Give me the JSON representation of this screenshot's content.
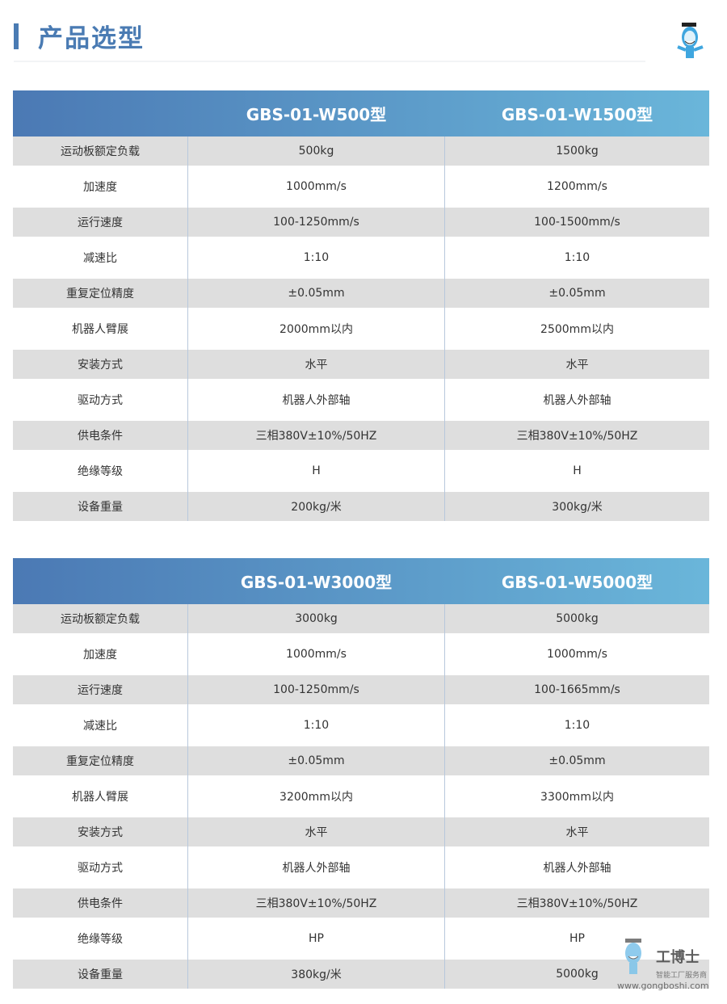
{
  "page_title": "产品选型",
  "row_labels": [
    "运动板额定负载",
    "加速度",
    "运行速度",
    "减速比",
    "重复定位精度",
    "机器人臂展",
    "安装方式",
    "驱动方式",
    "供电条件",
    "绝缘等级",
    "设备重量"
  ],
  "tables": [
    {
      "models": [
        "GBS-01-W500型",
        "GBS-01-W1500型"
      ],
      "values": [
        [
          "500kg",
          "1500kg"
        ],
        [
          "1000mm/s",
          "1200mm/s"
        ],
        [
          "100-1250mm/s",
          "100-1500mm/s"
        ],
        [
          "1:10",
          "1:10"
        ],
        [
          "±0.05mm",
          "±0.05mm"
        ],
        [
          "2000mm以内",
          "2500mm以内"
        ],
        [
          "水平",
          "水平"
        ],
        [
          "机器人外部轴",
          "机器人外部轴"
        ],
        [
          "三相380V±10%/50HZ",
          "三相380V±10%/50HZ"
        ],
        [
          "H",
          "H"
        ],
        [
          "200kg/米",
          "300kg/米"
        ]
      ]
    },
    {
      "models": [
        "GBS-01-W3000型",
        "GBS-01-W5000型"
      ],
      "values": [
        [
          "3000kg",
          "5000kg"
        ],
        [
          "1000mm/s",
          "1000mm/s"
        ],
        [
          "100-1250mm/s",
          "100-1665mm/s"
        ],
        [
          "1:10",
          "1:10"
        ],
        [
          "±0.05mm",
          "±0.05mm"
        ],
        [
          "3200mm以内",
          "3300mm以内"
        ],
        [
          "水平",
          "水平"
        ],
        [
          "机器人外部轴",
          "机器人外部轴"
        ],
        [
          "三相380V±10%/50HZ",
          "三相380V±10%/50HZ"
        ],
        [
          "HP",
          "HP"
        ],
        [
          "380kg/米",
          "5000kg"
        ]
      ]
    }
  ],
  "watermark": {
    "brand": "工博士",
    "tagline": "智能工厂服务商",
    "url": "www.gongboshi.com"
  },
  "colors": {
    "accent": "#4a7bb3",
    "header_start": "#4b79b4",
    "header_end": "#6ab6da",
    "stripe": "#dedede"
  }
}
